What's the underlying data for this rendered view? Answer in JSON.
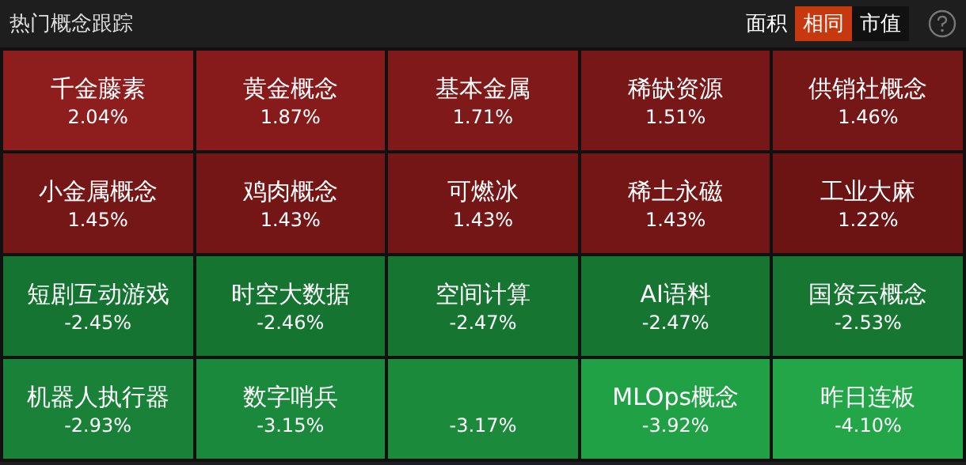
{
  "chart_data": {
    "type": "other",
    "title": "热门概念跟踪",
    "annotations": [
      "面积",
      "相同",
      "市值"
    ],
    "categories": [
      "千金藤素",
      "黄金概念",
      "基本金属",
      "稀缺资源",
      "供销社概念",
      "小金属概念",
      "鸡肉概念",
      "可燃冰",
      "稀土永磁",
      "工业大麻",
      "短剧互动游戏",
      "时空大数据",
      "空间计算",
      "AI语料",
      "国资云概念",
      "机器人执行器",
      "数字哨兵",
      null,
      "MLOps概念",
      "昨日连板"
    ],
    "values": [
      2.04,
      1.87,
      1.71,
      1.51,
      1.46,
      1.45,
      1.43,
      1.43,
      1.43,
      1.22,
      -2.45,
      -2.46,
      -2.47,
      -2.47,
      -2.53,
      -2.93,
      -3.15,
      -3.17,
      -3.92,
      -4.1
    ],
    "value_labels": [
      "2.04%",
      "1.87%",
      "1.71%",
      "1.51%",
      "1.46%",
      "1.45%",
      "1.43%",
      "1.43%",
      "1.43%",
      "1.22%",
      "-2.45%",
      "-2.46%",
      "-2.47%",
      "-2.47%",
      "-2.53%",
      "-2.93%",
      "-3.15%",
      "-3.17%",
      "-3.92%",
      "-4.10%"
    ]
  }
}
